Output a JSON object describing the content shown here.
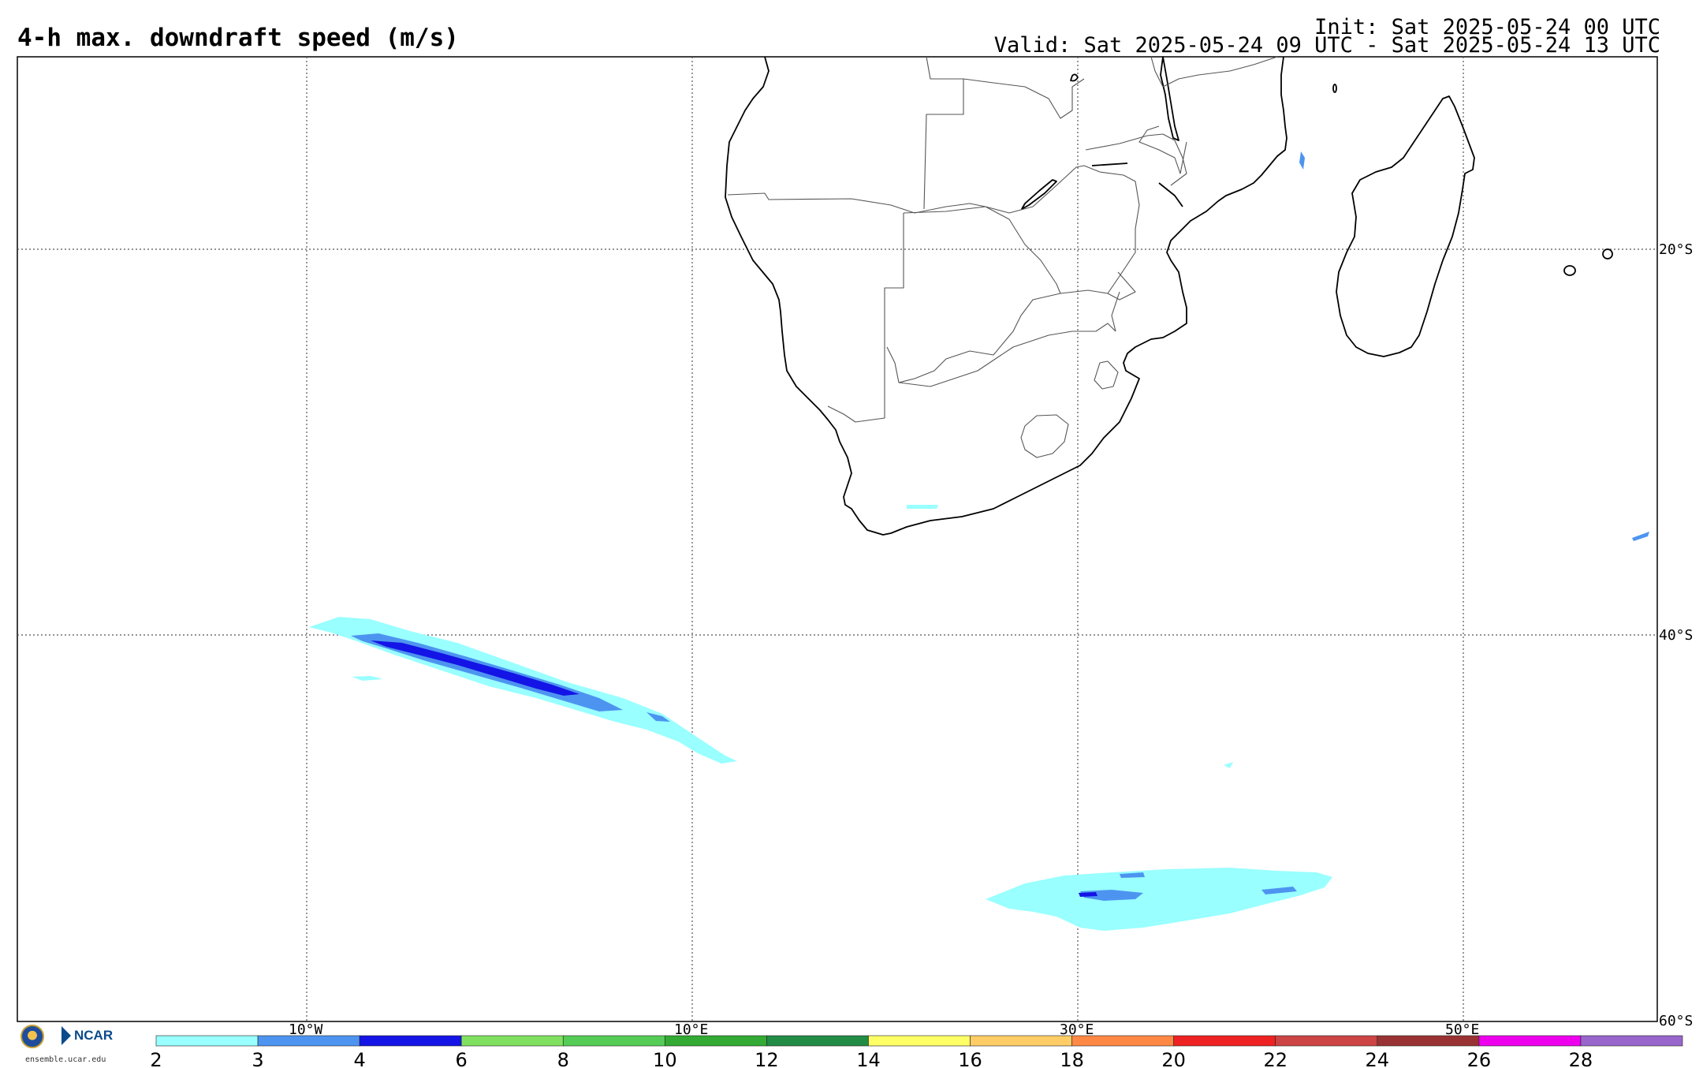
{
  "header": {
    "title": "4-h max. downdraft speed (m/s)",
    "init": "Init: Sat 2025-05-24 00 UTC",
    "valid": "Valid: Sat 2025-05-24 09 UTC - Sat 2025-05-24 13 UTC"
  },
  "map": {
    "lon_labels": [
      "10°W",
      "10°E",
      "30°E",
      "50°E"
    ],
    "lat_labels": [
      "20°S",
      "40°S",
      "60°S"
    ],
    "gridlines": "dotted"
  },
  "colorbar": {
    "ticks": [
      "2",
      "3",
      "4",
      "6",
      "8",
      "10",
      "12",
      "14",
      "16",
      "18",
      "20",
      "22",
      "24",
      "26",
      "28"
    ],
    "colors": [
      "#99ffff",
      "#4d94f0",
      "#1414e6",
      "#80e060",
      "#55cc55",
      "#33aa33",
      "#228b44",
      "#ffff66",
      "#ffcc66",
      "#ff8844",
      "#ee2222",
      "#cc4444",
      "#993333",
      "#ee00ee",
      "#9966cc"
    ]
  },
  "logos": {
    "nsf_text": "NSF",
    "ncar_text": "NCAR",
    "url": "ensemble.ucar.edu"
  }
}
